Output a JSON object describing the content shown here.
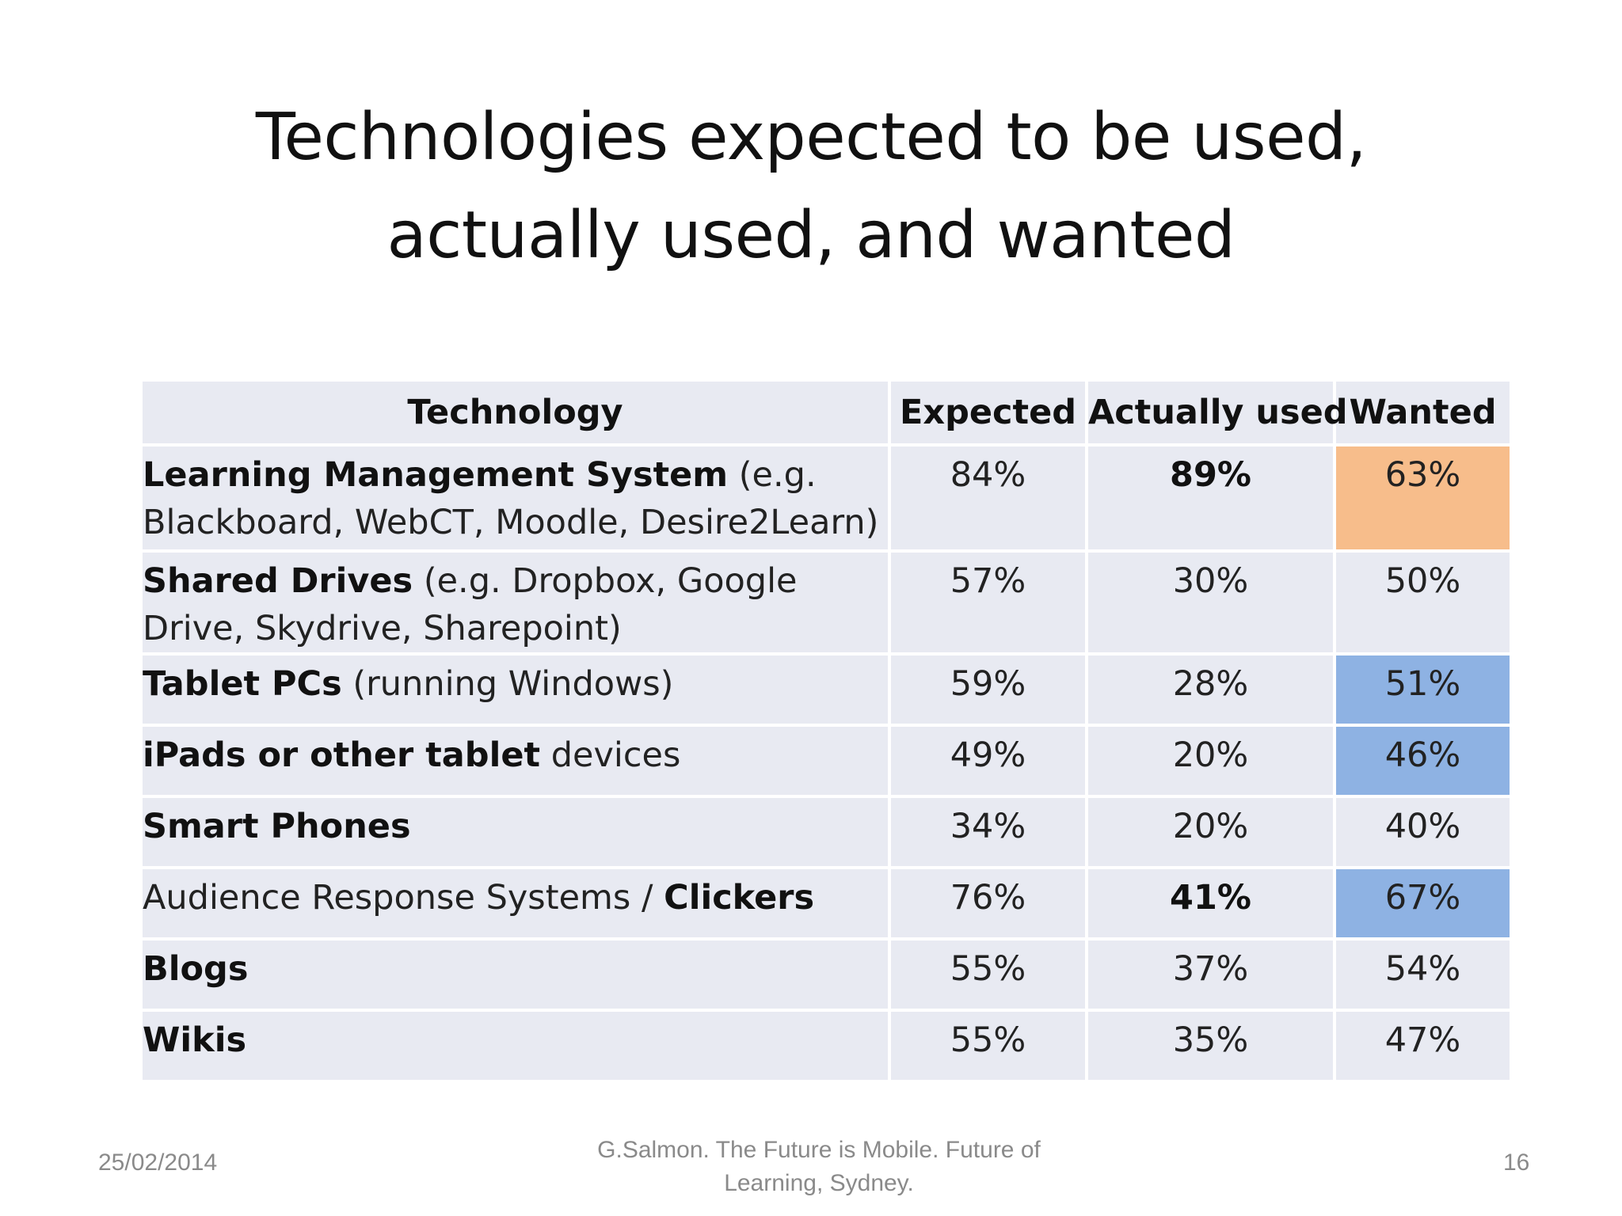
{
  "slide": {
    "title_line1": "Technologies expected to be used,",
    "title_line2": "actually used, and wanted"
  },
  "table": {
    "headers": [
      "Technology",
      "Expected",
      "Actually used",
      "Wanted"
    ],
    "rows": [
      {
        "tech_bold": "Learning Management System",
        "tech_rest": " (e.g. Blackboard, WebCT, Moodle, Desire2Learn)",
        "expected": "84%",
        "actually_used": "89%",
        "wanted": "63%"
      },
      {
        "tech_bold": "Shared Drives",
        "tech_rest": " (e.g. Dropbox, Google Drive, Skydrive, Sharepoint)",
        "expected": "57%",
        "actually_used": "30%",
        "wanted": "50%"
      },
      {
        "tech_bold": "Tablet PCs",
        "tech_rest": " (running Windows)",
        "expected": "59%",
        "actually_used": "28%",
        "wanted": "51%"
      },
      {
        "tech_bold": "iPads or other tablet",
        "tech_rest": " devices",
        "expected": "49%",
        "actually_used": "20%",
        "wanted": "46%"
      },
      {
        "tech_bold": "Smart Phones",
        "tech_rest": "",
        "expected": "34%",
        "actually_used": "20%",
        "wanted": "40%"
      },
      {
        "tech_prefix": "Audience Response Systems / ",
        "tech_bold": "Clickers",
        "expected": "76%",
        "actually_used": "41%",
        "wanted": "67%"
      },
      {
        "tech_bold": "Blogs",
        "tech_rest": "",
        "expected": "55%",
        "actually_used": "37%",
        "wanted": "54%"
      },
      {
        "tech_bold": "Wikis",
        "tech_rest": "",
        "expected": "55%",
        "actually_used": "35%",
        "wanted": "47%"
      }
    ],
    "highlight_colors": {
      "orange": "#f7bd8b",
      "blue": "#8eb2e3",
      "cell_bg": "#e8eaf2"
    }
  },
  "footer": {
    "date": "25/02/2014",
    "source_line1": "G.Salmon. The Future is Mobile. Future of",
    "source_line2": "Learning, Sydney.",
    "page_number": "16"
  }
}
